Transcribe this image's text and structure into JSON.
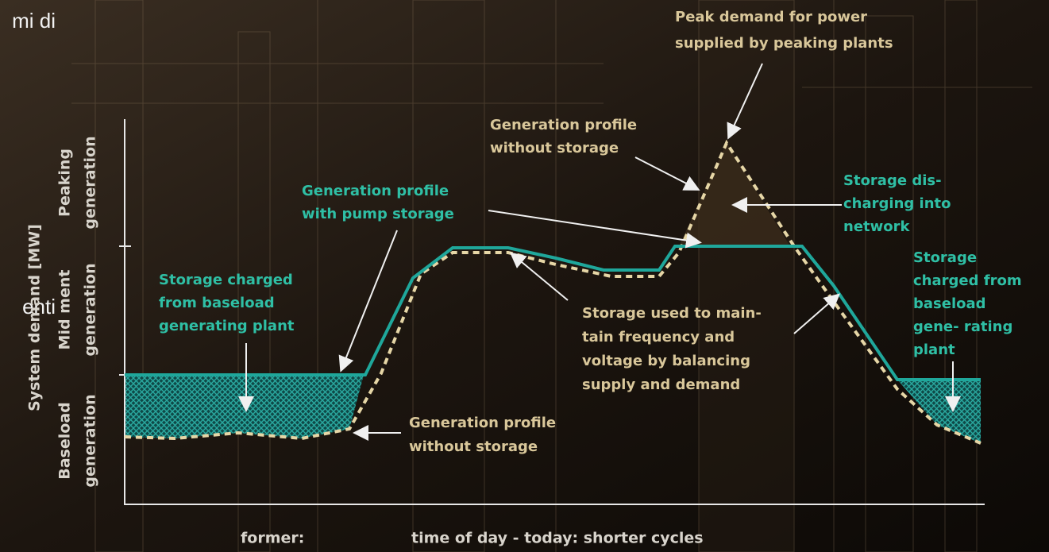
{
  "slide_fragments": [
    "mi di",
    "enti"
  ],
  "diagram": {
    "y_axis": {
      "title": "System demand [MW]",
      "bands": [
        {
          "name": "Baseload",
          "sub": "generation"
        },
        {
          "name": "Mid ment",
          "sub": "generation"
        },
        {
          "name": "Peaking",
          "sub": "generation"
        }
      ]
    },
    "x_axis": {
      "left": "former:",
      "right": "time of day - today: shorter cycles"
    },
    "annotations": [
      {
        "lines": [
          "Peak demand for power",
          "supplied by peaking plants"
        ]
      },
      {
        "lines": [
          "Generation profile",
          "without storage"
        ]
      },
      {
        "lines": [
          "Generation profile",
          "with pump storage"
        ]
      },
      {
        "lines": [
          "Storage dis-",
          "charging into",
          "network"
        ]
      },
      {
        "lines": [
          "Storage charged",
          "from baseload",
          "generating plant"
        ]
      },
      {
        "lines": [
          "Storage used to main-",
          "tain frequency and",
          "voltage by balancing",
          "supply and demand"
        ]
      },
      {
        "lines": [
          "Storage",
          "charged from",
          "baseload",
          "gene- rating",
          "plant"
        ]
      },
      {
        "lines": [
          "Generation profile",
          "without storage"
        ]
      }
    ]
  }
}
